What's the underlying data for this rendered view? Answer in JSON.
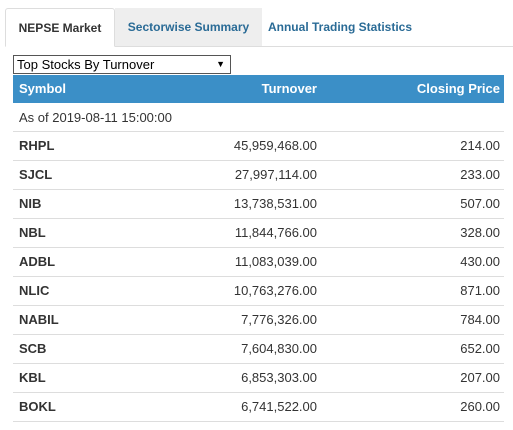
{
  "tabs": [
    {
      "label": "NEPSE Market"
    },
    {
      "label": "Sectorwise Summary"
    },
    {
      "label": "Annual Trading Statistics"
    }
  ],
  "active_tab": "NEPSE Market",
  "filter": {
    "selected": "Top Stocks By Turnover"
  },
  "table": {
    "headers": [
      "Symbol",
      "Turnover",
      "Closing Price"
    ],
    "as_of": "As of 2019-08-11 15:00:00",
    "rows": [
      {
        "symbol": "RHPL",
        "turnover": "45,959,468.00",
        "closing_price": "214.00"
      },
      {
        "symbol": "SJCL",
        "turnover": "27,997,114.00",
        "closing_price": "233.00"
      },
      {
        "symbol": "NIB",
        "turnover": "13,738,531.00",
        "closing_price": "507.00"
      },
      {
        "symbol": "NBL",
        "turnover": "11,844,766.00",
        "closing_price": "328.00"
      },
      {
        "symbol": "ADBL",
        "turnover": "11,083,039.00",
        "closing_price": "430.00"
      },
      {
        "symbol": "NLIC",
        "turnover": "10,763,276.00",
        "closing_price": "871.00"
      },
      {
        "symbol": "NABIL",
        "turnover": "7,776,326.00",
        "closing_price": "784.00"
      },
      {
        "symbol": "SCB",
        "turnover": "7,604,830.00",
        "closing_price": "652.00"
      },
      {
        "symbol": "KBL",
        "turnover": "6,853,303.00",
        "closing_price": "207.00"
      },
      {
        "symbol": "BOKL",
        "turnover": "6,741,522.00",
        "closing_price": "260.00"
      }
    ]
  },
  "colors": {
    "header_bg": "#3b8fc7",
    "tab_link": "#2a6b96",
    "inactive_tab_bg": "#eeeeee"
  }
}
